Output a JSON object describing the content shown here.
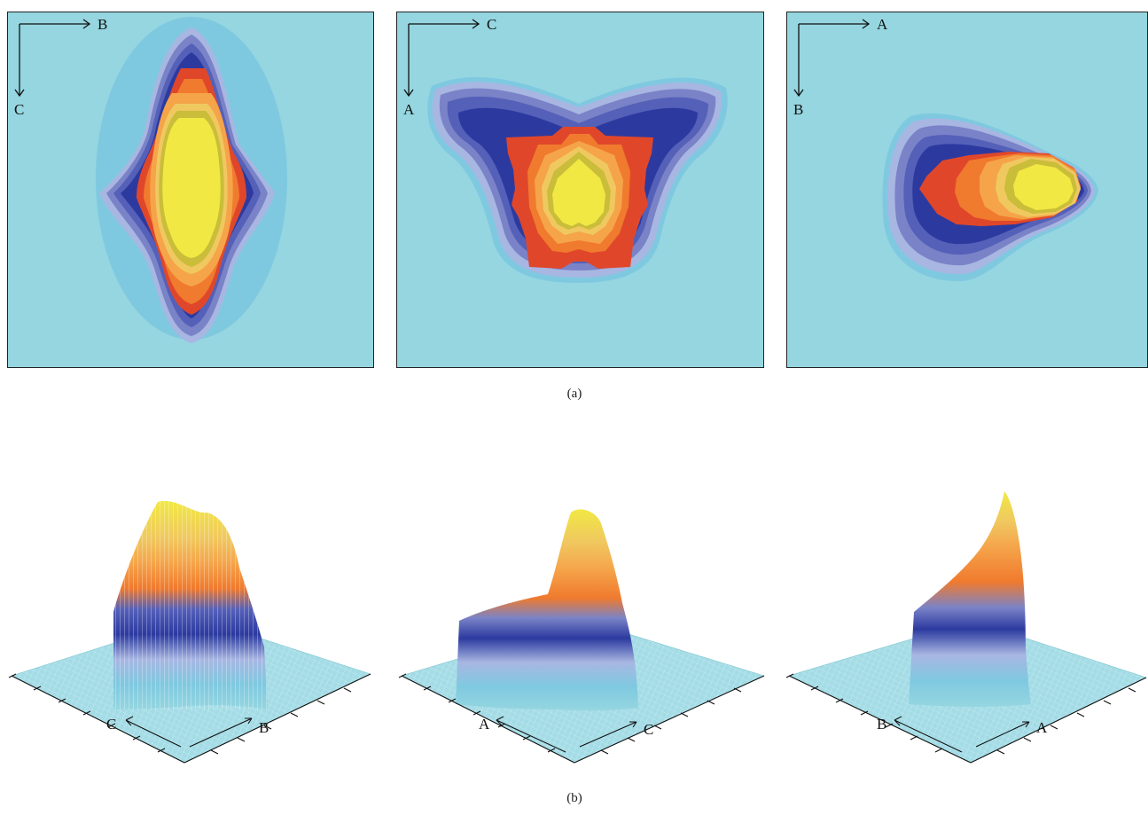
{
  "figure": {
    "caption_a": "(a)",
    "caption_b": "(b)"
  },
  "colors": {
    "background": "#95d6e0",
    "levels": [
      "#95d6e0",
      "#7fc9e0",
      "#a8b6e2",
      "#7a83c7",
      "#5560b8",
      "#2c3aa0",
      "#e0472a",
      "#f07a2e",
      "#f5a44a",
      "#f0c860",
      "#c9bd3a",
      "#f1e843"
    ]
  },
  "chart_data": [
    {
      "type": "heatmap",
      "panel": "a-1",
      "axis_right": "B",
      "axis_down": "C",
      "title": "",
      "xlabel": "",
      "ylabel": "",
      "grid": false
    },
    {
      "type": "heatmap",
      "panel": "a-2",
      "axis_right": "C",
      "axis_down": "A",
      "title": "",
      "xlabel": "",
      "ylabel": "",
      "grid": false
    },
    {
      "type": "heatmap",
      "panel": "a-3",
      "axis_right": "A",
      "axis_down": "B",
      "title": "",
      "xlabel": "",
      "ylabel": "",
      "grid": false
    },
    {
      "type": "area",
      "panel": "b-1",
      "axis_left": "C",
      "axis_right": "B",
      "title": "",
      "xlabel": "",
      "ylabel": ""
    },
    {
      "type": "area",
      "panel": "b-2",
      "axis_left": "A",
      "axis_right": "C",
      "title": "",
      "xlabel": "",
      "ylabel": ""
    },
    {
      "type": "area",
      "panel": "b-3",
      "axis_left": "B",
      "axis_right": "A",
      "title": "",
      "xlabel": "",
      "ylabel": ""
    }
  ]
}
